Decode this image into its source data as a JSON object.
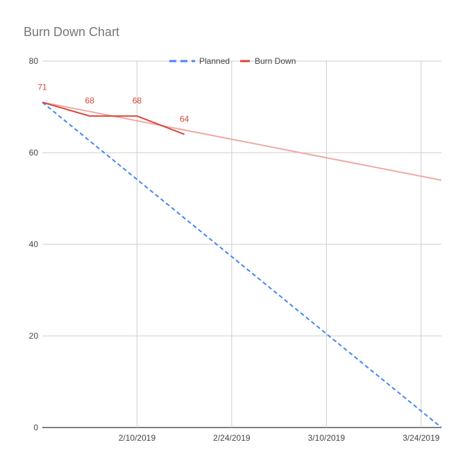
{
  "chart_data": {
    "type": "line",
    "title": "Burn Down Chart",
    "xlabel": "",
    "ylabel": "",
    "ylim": [
      0,
      80
    ],
    "y_ticks": [
      0,
      20,
      40,
      60,
      80
    ],
    "xlim": [
      "2019-01-27",
      "2019-03-27"
    ],
    "x_ticks": [
      {
        "date": "2019-02-10",
        "label": "2/10/2019"
      },
      {
        "date": "2019-02-24",
        "label": "2/24/2019"
      },
      {
        "date": "2019-03-10",
        "label": "3/10/2019"
      },
      {
        "date": "2019-03-24",
        "label": "3/24/2019"
      }
    ],
    "grid": true,
    "legend_position": "top",
    "series": [
      {
        "name": "Planned",
        "color": "#4285f4",
        "dashed": true,
        "points": [
          {
            "x": "2019-01-27",
            "y": 71
          },
          {
            "x": "2019-03-27",
            "y": 0
          }
        ]
      },
      {
        "name": "Burn Down",
        "color": "#db4437",
        "dashed": false,
        "points": [
          {
            "x": "2019-01-27",
            "y": 71,
            "label": "71"
          },
          {
            "x": "2019-02-03",
            "y": 68,
            "label": "68"
          },
          {
            "x": "2019-02-10",
            "y": 68,
            "label": "68"
          },
          {
            "x": "2019-02-17",
            "y": 64,
            "label": "64"
          }
        ]
      }
    ],
    "trendline": {
      "series": "Burn Down",
      "color": "#efa8a2",
      "points": [
        {
          "x": "2019-01-27",
          "y": 71
        },
        {
          "x": "2019-03-27",
          "y": 54
        }
      ]
    }
  }
}
